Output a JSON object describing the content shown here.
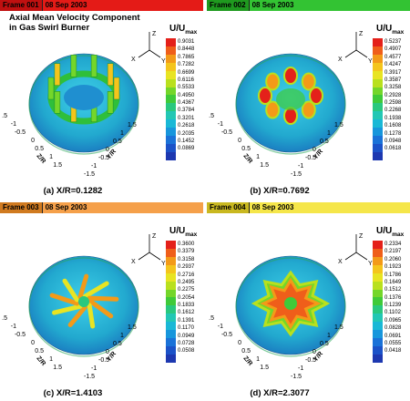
{
  "panels": [
    {
      "frame": "Frame 001",
      "date": "08 Sep 2003",
      "bar_color": "#e41b17",
      "title": "Axial Mean Velocity Component\nin Gas Swirl Burner",
      "legend_title": "U/U",
      "legend_sub": "max",
      "legend_values": [
        "0.9031",
        "0.8448",
        "0.7865",
        "0.7282",
        "0.6699",
        "0.6116",
        "0.5533",
        "0.4950",
        "0.4367",
        "0.3784",
        "0.3201",
        "0.2618",
        "0.2035",
        "0.1452",
        "0.0869"
      ],
      "caption": "(a) X/R=0.1282"
    },
    {
      "frame": "Frame 002",
      "date": "08 Sep 2003",
      "bar_color": "#33c333",
      "title": "",
      "legend_title": "U/U",
      "legend_sub": "max",
      "legend_values": [
        "0.5237",
        "0.4907",
        "0.4577",
        "0.4247",
        "0.3917",
        "0.3587",
        "0.3258",
        "0.2928",
        "0.2598",
        "0.2268",
        "0.1938",
        "0.1608",
        "0.1278",
        "0.0948",
        "0.0618"
      ],
      "caption": "(b) X/R=0.7692"
    },
    {
      "frame": "Frame 003",
      "date": "08 Sep 2003",
      "bar_color": "#f5a04a",
      "title": "",
      "legend_title": "U/U",
      "legend_sub": "max",
      "legend_values": [
        "0.3600",
        "0.3379",
        "0.3158",
        "0.2937",
        "0.2716",
        "0.2495",
        "0.2275",
        "0.2054",
        "0.1833",
        "0.1612",
        "0.1391",
        "0.1170",
        "0.0949",
        "0.0728",
        "0.0508"
      ],
      "caption": "(c) X/R=1.4103"
    },
    {
      "frame": "Frame 004",
      "date": "08 Sep 2003",
      "bar_color": "#f5e64a",
      "title": "",
      "legend_title": "U/U",
      "legend_sub": "max",
      "legend_values": [
        "0.2334",
        "0.2197",
        "0.2060",
        "0.1923",
        "0.1786",
        "0.1649",
        "0.1512",
        "0.1376",
        "0.1239",
        "0.1102",
        "0.0965",
        "0.0828",
        "0.0691",
        "0.0555",
        "0.0418"
      ],
      "caption": "(d) X/R=2.3077"
    }
  ],
  "axes": {
    "z_ticks": [
      "-1.5",
      "-1",
      "-0.5",
      "0",
      "0.5",
      "1",
      "1.5"
    ],
    "y_ticks": [
      "-1.5",
      "-1",
      "-0.5",
      "0",
      "0.5",
      "1",
      "1.5"
    ],
    "z_label": "Z/R",
    "y_label": "Y/R",
    "triad": {
      "z": "Z",
      "x": "X",
      "y": "Y"
    }
  },
  "colors": {
    "legend_scale": [
      "#e4201a",
      "#ef5e1a",
      "#f39a18",
      "#f4c51c",
      "#e8e422",
      "#b9e01e",
      "#74d62a",
      "#3fca39",
      "#29c87e",
      "#22c7b4",
      "#19b8d6",
      "#1796dc",
      "#1a72d8",
      "#1b52c8",
      "#1d38b0"
    ],
    "disc": "#29b9d0",
    "plateau": "#2fc23c"
  }
}
